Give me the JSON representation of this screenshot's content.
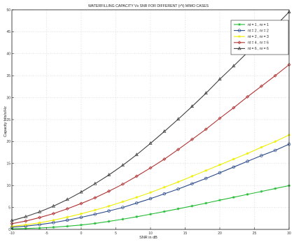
{
  "chart_data": {
    "type": "line",
    "title": "WATERFILLING CAPACITY Vs SNR FOR DIFFERENT (r*t) MIMO CASES",
    "xlabel": "SNR in dB",
    "ylabel": "Capacity bits/s/Hz",
    "xlim": [
      -10,
      30
    ],
    "ylim": [
      0,
      50
    ],
    "xticks": [
      -10,
      -5,
      0,
      5,
      10,
      15,
      20,
      25,
      30
    ],
    "yticks": [
      0,
      5,
      10,
      15,
      20,
      25,
      30,
      35,
      40,
      45,
      50
    ],
    "tick_labels_x": [
      "-10",
      "-5",
      "0",
      "5",
      "10",
      "15",
      "20",
      "25",
      "30"
    ],
    "tick_labels_y": [
      "0",
      "5",
      "10",
      "15",
      "20",
      "25",
      "30",
      "35",
      "40",
      "45",
      "50"
    ],
    "grid": true,
    "legend_position": "top-right",
    "x": [
      -10,
      -8,
      -6,
      -4,
      -2,
      0,
      2,
      4,
      6,
      8,
      10,
      12,
      14,
      16,
      18,
      20,
      22,
      24,
      26,
      28,
      30
    ],
    "series": [
      {
        "name": "nt = 1 , nr = 1",
        "color": "#22bb33",
        "marker": "star",
        "values": [
          0.14,
          0.21,
          0.32,
          0.49,
          0.72,
          1.0,
          1.37,
          1.82,
          2.33,
          2.88,
          3.46,
          4.07,
          4.69,
          5.32,
          5.97,
          6.66,
          7.31,
          7.98,
          8.64,
          9.3,
          9.97
        ]
      },
      {
        "name": "nt = 2 , nr = 2",
        "color": "#2a4a8a",
        "marker": "circle",
        "values": [
          0.5,
          0.75,
          1.1,
          1.55,
          2.1,
          2.75,
          3.45,
          4.2,
          5.0,
          6.0,
          7.0,
          8.1,
          9.2,
          10.4,
          11.6,
          12.9,
          14.2,
          15.5,
          16.8,
          18.0,
          19.4
        ]
      },
      {
        "name": "nt = 2 , nr = 3",
        "color": "#eeee00",
        "marker": "star",
        "values": [
          0.7,
          1.05,
          1.5,
          2.1,
          2.8,
          3.55,
          4.4,
          5.3,
          6.3,
          7.3,
          8.4,
          9.6,
          10.8,
          12.1,
          13.4,
          14.7,
          16.0,
          17.3,
          18.7,
          20.0,
          21.5
        ]
      },
      {
        "name": "nt = 4 , nr = 6",
        "color": "#b03030",
        "marker": "diamond",
        "values": [
          1.3,
          1.9,
          2.7,
          3.6,
          4.7,
          5.9,
          7.2,
          8.7,
          10.3,
          12.1,
          14.0,
          16.0,
          18.2,
          20.5,
          22.8,
          25.3,
          27.7,
          30.2,
          32.6,
          35.0,
          37.5
        ]
      },
      {
        "name": "nt = 6 , nr = 6",
        "color": "#404040",
        "marker": "triangle",
        "values": [
          2.0,
          2.9,
          4.0,
          5.3,
          6.8,
          8.5,
          10.4,
          12.4,
          14.6,
          17.0,
          19.6,
          22.3,
          25.1,
          28.0,
          31.0,
          34.2,
          37.2,
          40.3,
          43.3,
          46.3,
          49.5
        ]
      }
    ]
  }
}
